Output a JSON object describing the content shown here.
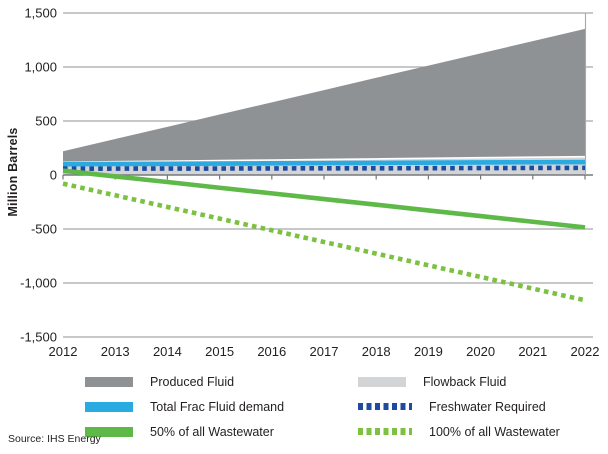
{
  "chart": {
    "ylabel": "Million Barrels",
    "y_ticks": [
      "1,500",
      "1,000",
      "500",
      "0",
      "-500",
      "-1,000",
      "-1,500"
    ],
    "y_tick_values": [
      1500,
      1000,
      500,
      0,
      -500,
      -1000,
      -1500
    ],
    "x_ticks": [
      "2012",
      "2013",
      "2014",
      "2015",
      "2016",
      "2017",
      "2018",
      "2019",
      "2020",
      "2021",
      "2022"
    ]
  },
  "chart_data": {
    "type": "area+line",
    "x": [
      2012,
      2013,
      2014,
      2015,
      2016,
      2017,
      2018,
      2019,
      2020,
      2021,
      2022
    ],
    "title": "",
    "xlabel": "",
    "ylabel": "Million Barrels",
    "ylim": [
      -1500,
      1500
    ],
    "grid": true,
    "legend_position": "bottom",
    "series": [
      {
        "name": "Produced Fluid",
        "type": "area",
        "color": "#8e9294",
        "values": [
          220,
          333,
          446,
          560,
          673,
          786,
          900,
          1013,
          1126,
          1240,
          1353
        ]
      },
      {
        "name": "Flowback Fluid",
        "type": "area",
        "color": "#d2d4d6",
        "values": [
          118,
          123,
          128,
          134,
          139,
          144,
          149,
          155,
          160,
          165,
          170
        ]
      },
      {
        "name": "Total Frac Fluid demand",
        "type": "line",
        "color": "#29abe2",
        "values": [
          100,
          102,
          104,
          106,
          108,
          110,
          112,
          114,
          116,
          118,
          120
        ]
      },
      {
        "name": "Freshwater Required",
        "type": "dashed",
        "color": "#1e4b9e",
        "values": [
          58,
          59,
          60,
          60,
          61,
          62,
          62,
          63,
          64,
          65,
          66
        ]
      },
      {
        "name": "50% of all Wastewater",
        "type": "line",
        "color": "#5eb949",
        "values": [
          40,
          -13,
          -65,
          -118,
          -170,
          -223,
          -275,
          -328,
          -380,
          -433,
          -485
        ]
      },
      {
        "name": "100% of all Wastewater",
        "type": "dashed",
        "color": "#7dc142",
        "values": [
          -80,
          -188,
          -296,
          -404,
          -512,
          -620,
          -728,
          -836,
          -944,
          -1052,
          -1160
        ]
      }
    ],
    "colors": {
      "gridline": "#a6a8ab",
      "zero_axis": "#77787b",
      "text": "#231f20",
      "area_divider": "#ffffff"
    }
  },
  "legend": {
    "columns": [
      {
        "items": [
          {
            "label": "Produced Fluid",
            "style": "solid",
            "color": "#8e9294"
          },
          {
            "label": "Total Frac Fluid demand",
            "style": "solid",
            "color": "#29abe2"
          },
          {
            "label": "50% of all Wastewater",
            "style": "solid",
            "color": "#5eb949"
          }
        ]
      },
      {
        "items": [
          {
            "label": "Flowback Fluid",
            "style": "solid",
            "color": "#d2d4d6"
          },
          {
            "label": "Freshwater Required",
            "style": "dotted",
            "color": "#1e4b9e"
          },
          {
            "label": "100% of all Wastewater",
            "style": "dotted",
            "color": "#7dc142"
          }
        ]
      }
    ]
  },
  "source": "Source: IHS Energy"
}
